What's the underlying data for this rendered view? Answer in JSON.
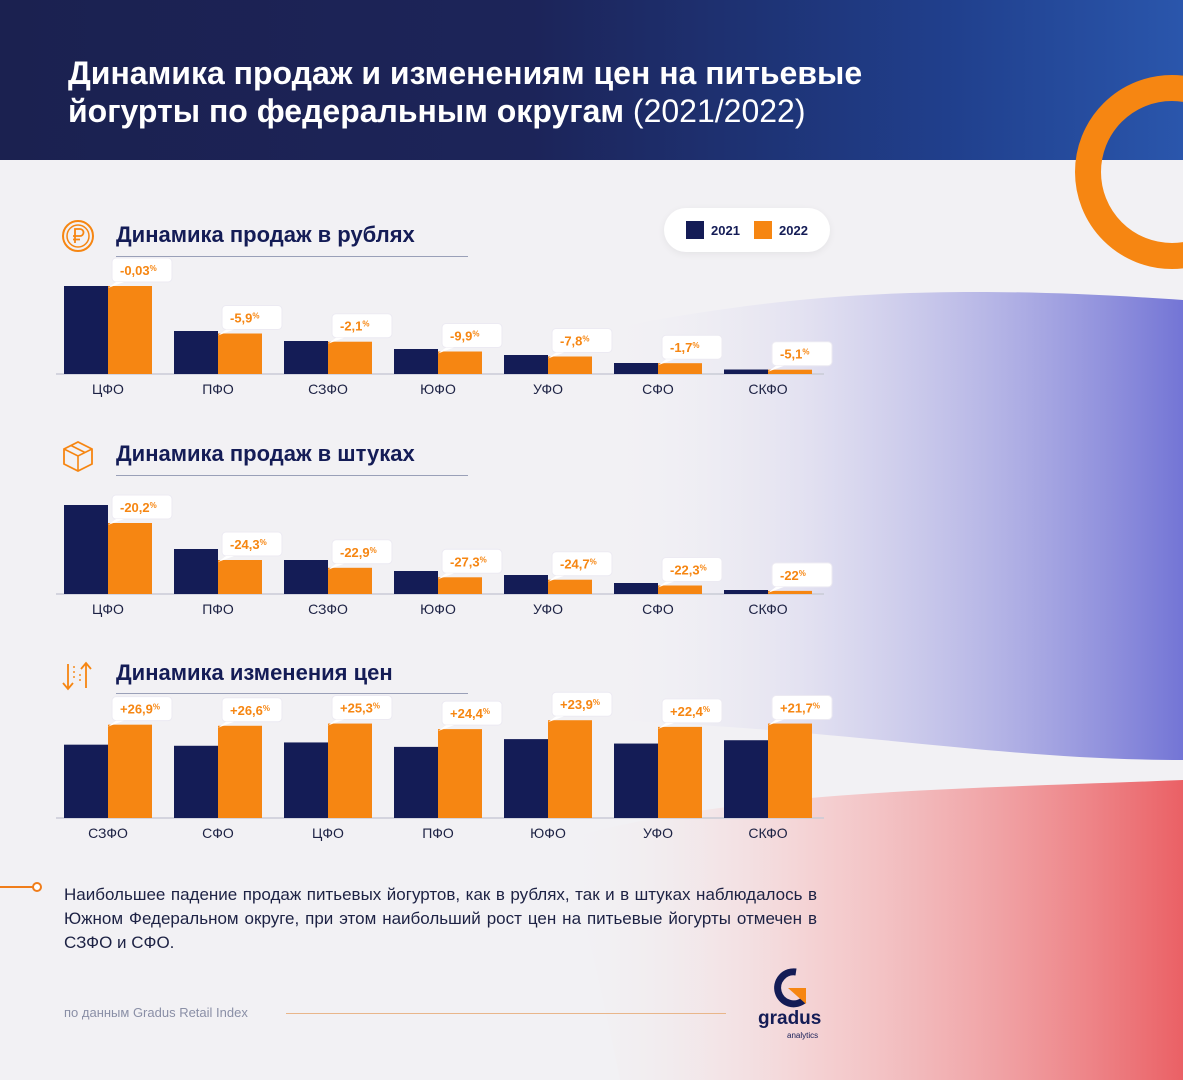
{
  "header": {
    "title_line1": "Динамика продаж и изменениям цен на питьевые",
    "title_line2": "йогурты по федеральным округам",
    "title_years": "(2021/2022)"
  },
  "legend": {
    "item_2021": "2021",
    "item_2022": "2022"
  },
  "colors": {
    "series_2021": "#141c56",
    "series_2022": "#f68612",
    "accent": "#f68612",
    "header_bg": "#1b2150"
  },
  "icons": {
    "section1": "ruble-coin-icon",
    "section2": "box-icon",
    "section3": "arrows-up-down-icon"
  },
  "chart_data": [
    {
      "type": "bar",
      "title": "Динамика продаж в рублях",
      "categories": [
        "ЦФО",
        "ПФО",
        "СЗФО",
        "ЮФО",
        "УФО",
        "СФО",
        "СКФО"
      ],
      "series": [
        {
          "name": "2021",
          "values": [
            88,
            43,
            33,
            25,
            19,
            11,
            4.5
          ]
        },
        {
          "name": "2022",
          "values": [
            88,
            40.5,
            32.3,
            22.5,
            17.5,
            10.8,
            4.3
          ]
        }
      ],
      "labels": [
        "-0,03",
        "-5,9",
        "-2,1",
        "-9,9",
        "-7,8",
        "-1,7",
        "-5,1"
      ],
      "label_unit": "%",
      "ylim": [
        0,
        90
      ]
    },
    {
      "type": "bar",
      "title": "Динамика продаж в штуках",
      "categories": [
        "ЦФО",
        "ПФО",
        "СЗФО",
        "ЮФО",
        "УФО",
        "СФО",
        "СКФО"
      ],
      "series": [
        {
          "name": "2021",
          "values": [
            89,
            45,
            34,
            23,
            19,
            11,
            4
          ]
        },
        {
          "name": "2022",
          "values": [
            71,
            34,
            26.2,
            16.7,
            14.3,
            8.5,
            3.1
          ]
        }
      ],
      "labels": [
        "-20,2",
        "-24,3",
        "-22,9",
        "-27,3",
        "-24,7",
        "-22,3",
        "-22"
      ],
      "label_unit": "%",
      "ylim": [
        0,
        90
      ]
    },
    {
      "type": "bar",
      "title": "Динамика изменения цен",
      "categories": [
        "СЗФО",
        "СФО",
        "ЦФО",
        "ПФО",
        "ЮФО",
        "УФО",
        "СКФО"
      ],
      "series": [
        {
          "name": "2021",
          "values": [
            66,
            65,
            68,
            64,
            71,
            67,
            70
          ]
        },
        {
          "name": "2022",
          "values": [
            84,
            83,
            85,
            80,
            88,
            82,
            85
          ]
        }
      ],
      "labels": [
        "+26,9",
        "+26,6",
        "+25,3",
        "+24,4",
        "+23,9",
        "+22,4",
        "+21,7"
      ],
      "label_unit": "%",
      "ylim": [
        0,
        90
      ]
    }
  ],
  "note": "Наибольшее падение продаж питьевых йогуртов, как в рублях, так и в штуках наблюдалось в Южном Федеральном округе, при этом наибольший рост цен на питьевые йогурты отмечен в СЗФО и СФО.",
  "footer": {
    "source": "по данным Gradus Retail Index",
    "logo_word": "gradus",
    "logo_sub": "analytics"
  }
}
